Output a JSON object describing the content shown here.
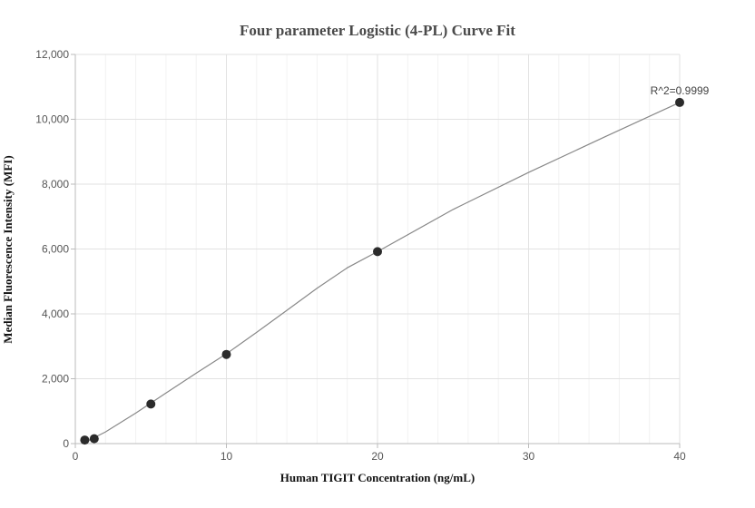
{
  "chart_data": {
    "type": "scatter",
    "title": "Four parameter Logistic (4-PL) Curve Fit",
    "xlabel": "Human TIGIT Concentration (ng/mL)",
    "ylabel": "Median Fluorescence Intensity (MFI)",
    "xlim": [
      0,
      40
    ],
    "ylim": [
      0,
      12000
    ],
    "xticks": [
      0,
      10,
      20,
      30,
      40
    ],
    "yticks": [
      0,
      2000,
      4000,
      6000,
      8000,
      10000,
      12000
    ],
    "xtick_labels": [
      "0",
      "10",
      "20",
      "30",
      "40"
    ],
    "ytick_labels": [
      "0",
      "2,000",
      "4,000",
      "6,000",
      "8,000",
      "10,000",
      "12,000"
    ],
    "grid": true,
    "series": [
      {
        "x": [
          0.625,
          1.25,
          5,
          10,
          20,
          40
        ],
        "y": [
          110,
          150,
          1220,
          2750,
          5920,
          10520
        ]
      }
    ],
    "fit_curve": {
      "x": [
        0.625,
        2,
        4,
        6,
        8,
        10,
        12,
        14,
        16,
        18,
        20,
        25,
        30,
        35,
        40
      ],
      "y": [
        40,
        360,
        940,
        1560,
        2170,
        2770,
        3430,
        4110,
        4790,
        5420,
        5920,
        7220,
        8360,
        9450,
        10520
      ]
    },
    "annotation": "R^2=0.9999",
    "colors": {
      "points": "#2b2b2b",
      "curve": "#888888",
      "grid": "#e2e2e2"
    }
  }
}
